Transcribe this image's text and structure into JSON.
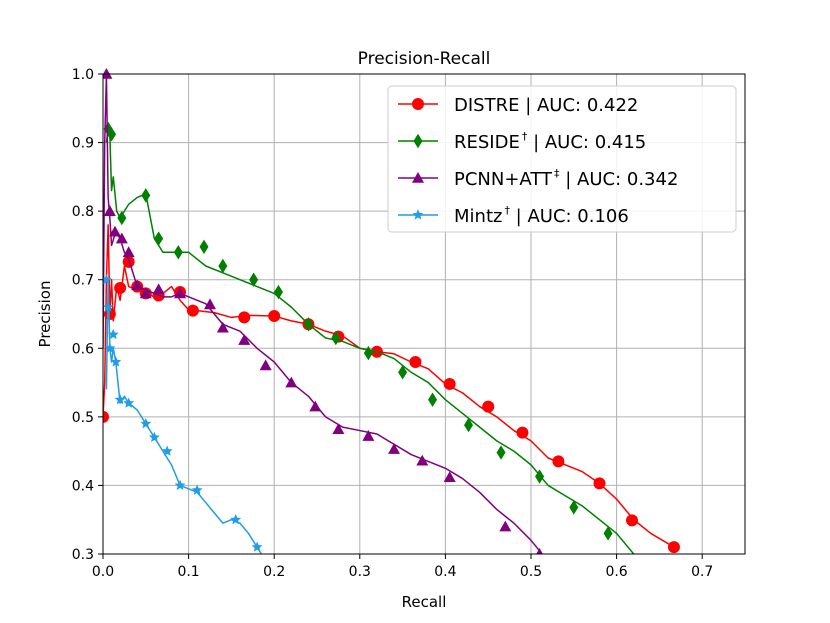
{
  "chart_data": {
    "type": "line",
    "title": "Precision-Recall",
    "xlabel": "Recall",
    "ylabel": "Precision",
    "xlim": [
      0.0,
      0.75
    ],
    "ylim": [
      0.3,
      1.0
    ],
    "xticks": [
      "0.0",
      "0.1",
      "0.2",
      "0.3",
      "0.4",
      "0.5",
      "0.6",
      "0.7"
    ],
    "yticks": [
      "0.3",
      "0.4",
      "0.5",
      "0.6",
      "0.7",
      "0.8",
      "0.9",
      "1.0"
    ],
    "grid": true,
    "legend_position": "top-right",
    "series": [
      {
        "name": "DISTRE | AUC: 0.422",
        "legend_main": "DISTRE",
        "legend_sup": "",
        "legend_rest": " | AUC: 0.422",
        "color": "#ff0000",
        "marker": "circle",
        "x": [
          0.0,
          0.002,
          0.004,
          0.006,
          0.008,
          0.01,
          0.012,
          0.016,
          0.02,
          0.025,
          0.03,
          0.04,
          0.05,
          0.06,
          0.07,
          0.08,
          0.09,
          0.1,
          0.11,
          0.13,
          0.15,
          0.17,
          0.2,
          0.22,
          0.24,
          0.26,
          0.28,
          0.3,
          0.32,
          0.34,
          0.36,
          0.38,
          0.4,
          0.42,
          0.44,
          0.46,
          0.48,
          0.5,
          0.52,
          0.54,
          0.56,
          0.58,
          0.6,
          0.62,
          0.64,
          0.667
        ],
        "y": [
          0.5,
          0.55,
          0.7,
          0.78,
          0.65,
          0.7,
          0.64,
          0.69,
          0.67,
          0.72,
          0.69,
          0.685,
          0.68,
          0.675,
          0.68,
          0.69,
          0.67,
          0.656,
          0.655,
          0.652,
          0.645,
          0.648,
          0.647,
          0.64,
          0.635,
          0.625,
          0.618,
          0.6,
          0.595,
          0.592,
          0.58,
          0.57,
          0.548,
          0.535,
          0.515,
          0.5,
          0.48,
          0.465,
          0.44,
          0.43,
          0.42,
          0.403,
          0.38,
          0.35,
          0.33,
          0.31
        ],
        "markers": [
          [
            0.0,
            0.5
          ],
          [
            0.008,
            0.65
          ],
          [
            0.02,
            0.688
          ],
          [
            0.03,
            0.726
          ],
          [
            0.04,
            0.69
          ],
          [
            0.05,
            0.68
          ],
          [
            0.065,
            0.677
          ],
          [
            0.09,
            0.682
          ],
          [
            0.105,
            0.655
          ],
          [
            0.165,
            0.645
          ],
          [
            0.2,
            0.647
          ],
          [
            0.24,
            0.635
          ],
          [
            0.275,
            0.617
          ],
          [
            0.32,
            0.595
          ],
          [
            0.365,
            0.58
          ],
          [
            0.405,
            0.548
          ],
          [
            0.45,
            0.515
          ],
          [
            0.49,
            0.477
          ],
          [
            0.532,
            0.435
          ],
          [
            0.58,
            0.403
          ],
          [
            0.618,
            0.349
          ],
          [
            0.667,
            0.31
          ]
        ]
      },
      {
        "name": "RESIDE† | AUC: 0.415",
        "legend_main": "RESIDE",
        "legend_sup": "†",
        "legend_rest": " | AUC: 0.415",
        "color": "#008000",
        "marker": "diamond",
        "x": [
          0.004,
          0.006,
          0.008,
          0.01,
          0.012,
          0.016,
          0.02,
          0.03,
          0.04,
          0.05,
          0.06,
          0.07,
          0.08,
          0.1,
          0.12,
          0.14,
          0.16,
          0.18,
          0.2,
          0.22,
          0.24,
          0.26,
          0.28,
          0.3,
          0.32,
          0.34,
          0.36,
          0.38,
          0.4,
          0.42,
          0.44,
          0.46,
          0.48,
          0.5,
          0.52,
          0.54,
          0.56,
          0.58,
          0.6,
          0.62
        ],
        "y": [
          0.9,
          0.92,
          0.91,
          0.83,
          0.85,
          0.8,
          0.79,
          0.81,
          0.82,
          0.825,
          0.76,
          0.74,
          0.74,
          0.74,
          0.72,
          0.71,
          0.7,
          0.69,
          0.68,
          0.66,
          0.635,
          0.615,
          0.61,
          0.6,
          0.595,
          0.585,
          0.565,
          0.55,
          0.525,
          0.505,
          0.485,
          0.465,
          0.45,
          0.43,
          0.4,
          0.385,
          0.37,
          0.35,
          0.33,
          0.3
        ],
        "markers": [
          [
            0.006,
            0.92
          ],
          [
            0.01,
            0.912
          ],
          [
            0.022,
            0.79
          ],
          [
            0.05,
            0.823
          ],
          [
            0.065,
            0.76
          ],
          [
            0.088,
            0.74
          ],
          [
            0.118,
            0.748
          ],
          [
            0.14,
            0.72
          ],
          [
            0.176,
            0.7
          ],
          [
            0.205,
            0.682
          ],
          [
            0.24,
            0.635
          ],
          [
            0.272,
            0.615
          ],
          [
            0.31,
            0.593
          ],
          [
            0.35,
            0.565
          ],
          [
            0.385,
            0.525
          ],
          [
            0.427,
            0.488
          ],
          [
            0.465,
            0.448
          ],
          [
            0.51,
            0.413
          ],
          [
            0.55,
            0.368
          ],
          [
            0.59,
            0.33
          ]
        ]
      },
      {
        "name": "PCNN+ATT‡ | AUC: 0.342",
        "legend_main": "PCNN+ATT",
        "legend_sup": "‡",
        "legend_rest": " | AUC: 0.342",
        "color": "#800080",
        "marker": "triangle",
        "x": [
          0.0,
          0.002,
          0.004,
          0.006,
          0.008,
          0.01,
          0.015,
          0.02,
          0.025,
          0.03,
          0.04,
          0.05,
          0.06,
          0.07,
          0.08,
          0.09,
          0.1,
          0.11,
          0.12,
          0.14,
          0.16,
          0.18,
          0.2,
          0.22,
          0.24,
          0.26,
          0.28,
          0.3,
          0.32,
          0.34,
          0.36,
          0.38,
          0.4,
          0.42,
          0.44,
          0.46,
          0.48,
          0.5,
          0.513
        ],
        "y": [
          0.6,
          0.9,
          1.0,
          0.82,
          0.79,
          0.75,
          0.77,
          0.76,
          0.74,
          0.73,
          0.69,
          0.685,
          0.68,
          0.675,
          0.675,
          0.68,
          0.675,
          0.67,
          0.665,
          0.635,
          0.625,
          0.6,
          0.58,
          0.55,
          0.53,
          0.5,
          0.485,
          0.48,
          0.475,
          0.46,
          0.445,
          0.435,
          0.425,
          0.41,
          0.39,
          0.365,
          0.345,
          0.32,
          0.3
        ],
        "markers": [
          [
            0.004,
            1.0
          ],
          [
            0.008,
            0.8
          ],
          [
            0.014,
            0.77
          ],
          [
            0.022,
            0.76
          ],
          [
            0.03,
            0.74
          ],
          [
            0.04,
            0.692
          ],
          [
            0.05,
            0.68
          ],
          [
            0.065,
            0.686
          ],
          [
            0.09,
            0.68
          ],
          [
            0.125,
            0.664
          ],
          [
            0.14,
            0.63
          ],
          [
            0.165,
            0.612
          ],
          [
            0.19,
            0.575
          ],
          [
            0.22,
            0.55
          ],
          [
            0.248,
            0.515
          ],
          [
            0.275,
            0.482
          ],
          [
            0.31,
            0.472
          ],
          [
            0.34,
            0.453
          ],
          [
            0.373,
            0.436
          ],
          [
            0.405,
            0.412
          ],
          [
            0.47,
            0.34
          ],
          [
            0.51,
            0.3
          ]
        ]
      },
      {
        "name": "Mintz† | AUC: 0.106",
        "legend_main": "Mintz",
        "legend_sup": "†",
        "legend_rest": " | AUC: 0.106",
        "color": "#1f9de6",
        "marker": "star",
        "x": [
          0.004,
          0.006,
          0.008,
          0.01,
          0.012,
          0.015,
          0.02,
          0.025,
          0.03,
          0.04,
          0.05,
          0.06,
          0.07,
          0.08,
          0.09,
          0.1,
          0.11,
          0.12,
          0.13,
          0.14,
          0.15,
          0.16,
          0.17,
          0.18,
          0.185
        ],
        "y": [
          0.54,
          0.7,
          0.6,
          0.58,
          0.6,
          0.58,
          0.52,
          0.53,
          0.52,
          0.51,
          0.49,
          0.47,
          0.45,
          0.43,
          0.4,
          0.395,
          0.39,
          0.375,
          0.36,
          0.345,
          0.35,
          0.345,
          0.33,
          0.31,
          0.3
        ],
        "markers": [
          [
            0.004,
            0.7
          ],
          [
            0.006,
            0.66
          ],
          [
            0.008,
            0.6
          ],
          [
            0.012,
            0.62
          ],
          [
            0.015,
            0.58
          ],
          [
            0.02,
            0.525
          ],
          [
            0.03,
            0.52
          ],
          [
            0.05,
            0.49
          ],
          [
            0.06,
            0.47
          ],
          [
            0.075,
            0.45
          ],
          [
            0.09,
            0.4
          ],
          [
            0.11,
            0.393
          ],
          [
            0.155,
            0.35
          ],
          [
            0.18,
            0.31
          ]
        ]
      }
    ]
  }
}
